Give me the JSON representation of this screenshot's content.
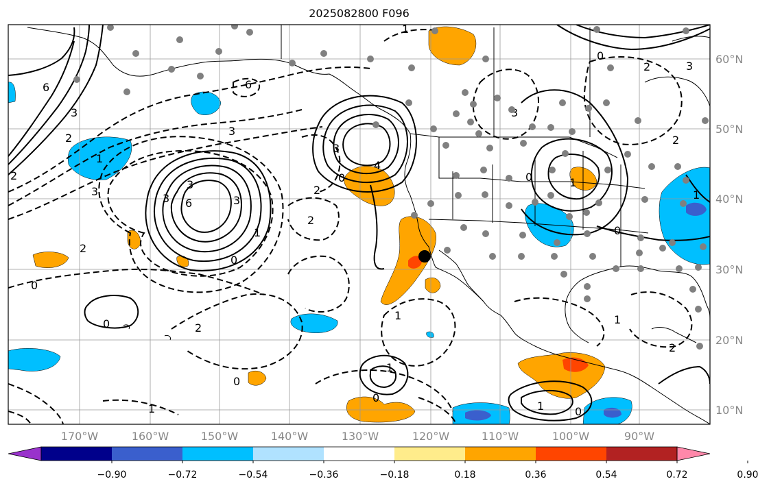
{
  "title": "2025082800 F096",
  "lat_labels": [
    "60°N",
    "50°N",
    "40°N",
    "30°N",
    "20°N",
    "10°N"
  ],
  "lon_labels": [
    "170°W",
    "160°W",
    "150°W",
    "140°W",
    "130°W",
    "120°W",
    "110°W",
    "100°W",
    "90°W"
  ],
  "colorbar": {
    "colors": [
      "#9932cc",
      "#00008b",
      "#3a5fcd",
      "#00bfff",
      "#b0e2ff",
      "#ffffff",
      "#ffec8b",
      "#ffa500",
      "#ff4500",
      "#b22222",
      "#ff88aa"
    ],
    "tick_labels": [
      "−0.90",
      "−0.72",
      "−0.54",
      "−0.36",
      "−0.18",
      "0.18",
      "0.36",
      "0.54",
      "0.72",
      "0.90"
    ]
  },
  "contour_labels": [
    "6",
    "3",
    "2",
    "3",
    "2",
    "1",
    "0",
    "2",
    "0",
    "1",
    "6",
    "3",
    "3",
    "2",
    "4",
    "3",
    "1",
    "0",
    "0",
    "2",
    "1",
    "0",
    "1",
    "1",
    "0",
    "6",
    "3",
    "2",
    "3",
    "1",
    "0",
    "2",
    "0",
    "1",
    "1",
    "0",
    "0",
    "2",
    "3",
    "3",
    "2",
    "1"
  ],
  "marker": {
    "label": "black-dot-marker"
  }
}
